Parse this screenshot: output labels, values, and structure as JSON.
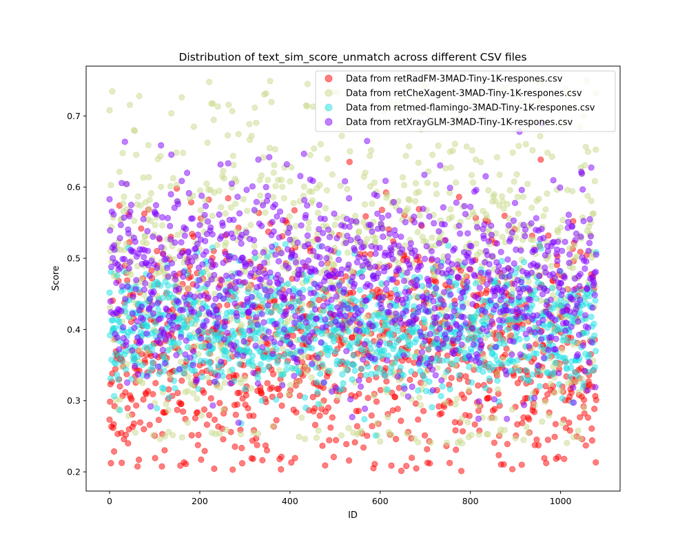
{
  "chart_data": {
    "type": "scatter",
    "title": "Distribution of text_sim_score_unmatch across different CSV files",
    "xlabel": "ID",
    "ylabel": "Score",
    "xlim": [
      -52,
      1132
    ],
    "ylim": [
      0.173,
      0.77
    ],
    "xticks": [
      0,
      200,
      400,
      600,
      800,
      1000
    ],
    "yticks": [
      0.2,
      0.3,
      0.4,
      0.5,
      0.6,
      0.7
    ],
    "grid": false,
    "legend_position": "top-right",
    "marker_opacity": 0.5,
    "n_points_per_series": 1080,
    "series": [
      {
        "name": "Data from retRadFM-3MAD-Tiny-1K-respones.csv",
        "color": "#ff0000",
        "range": [
          0.2,
          0.66
        ],
        "mean": 0.37,
        "spread": 0.085,
        "seed": 11
      },
      {
        "name": "Data from retCheXagent-3MAD-Tiny-1K-respones.csv",
        "color": "#c8d98a",
        "range": [
          0.24,
          0.75
        ],
        "mean": 0.47,
        "spread": 0.12,
        "seed": 23
      },
      {
        "name": "Data from retmed-flamingo-3MAD-Tiny-1K-respones.csv",
        "color": "#1ee0e6",
        "range": [
          0.25,
          0.52
        ],
        "mean": 0.4,
        "spread": 0.045,
        "seed": 37
      },
      {
        "name": "Data from retXrayGLM-3MAD-Tiny-1K-respones.csv",
        "color": "#8000ff",
        "range": [
          0.22,
          0.69
        ],
        "mean": 0.46,
        "spread": 0.07,
        "seed": 51
      }
    ]
  }
}
